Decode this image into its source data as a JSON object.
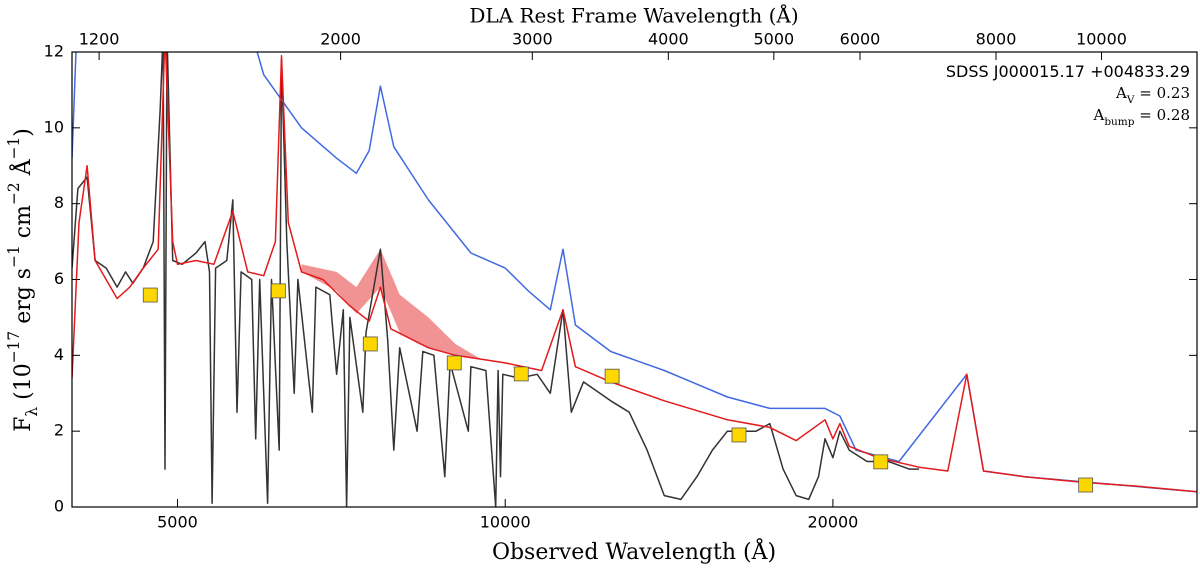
{
  "chart_data": {
    "type": "line",
    "x_scale": "log",
    "title": "DLA Rest Frame Wavelength  (Å)",
    "xlabel": "Observed Wavelength  (Å)",
    "ylabel": [
      {
        "text": "F"
      },
      {
        "text": "λ",
        "sub": true
      },
      {
        "text": "  (10"
      },
      {
        "text": "−17",
        "sup": true
      },
      {
        "text": " erg s"
      },
      {
        "text": "−1",
        "sup": true
      },
      {
        "text": " cm"
      },
      {
        "text": "−2",
        "sup": true
      },
      {
        "text": " Å"
      },
      {
        "text": "−1",
        "sup": true
      },
      {
        "text": ")"
      }
    ],
    "annotations": [
      [
        {
          "text": "SDSS J000015.17 +004833.29"
        }
      ],
      [
        {
          "text": "A"
        },
        {
          "text": "V",
          "sub": true
        },
        {
          "text": " = 0.23"
        }
      ],
      [
        {
          "text": "A"
        },
        {
          "text": "bump",
          "sub": true
        },
        {
          "text": " = 0.28"
        }
      ]
    ],
    "xlim": [
      4000,
      43200
    ],
    "xticks": [
      5000,
      10000,
      20000
    ],
    "x2lim": [
      1133.1,
      12238
    ],
    "x2ticks": [
      1200,
      2000,
      3000,
      4000,
      5000,
      6000,
      8000,
      10000
    ],
    "ylim": [
      0,
      12
    ],
    "yticks": [
      0,
      2,
      4,
      6,
      8,
      10,
      12
    ],
    "series": [
      {
        "kind": "band",
        "color": "#f08080",
        "x": [
          6500,
          7000,
          7300,
          7680,
          8000,
          8500,
          9000,
          9500
        ],
        "lower": [
          6.2,
          5.7,
          5.1,
          5.8,
          4.6,
          4.2,
          4.0,
          3.9
        ],
        "upper": [
          6.4,
          6.2,
          5.8,
          6.8,
          5.6,
          5.0,
          4.3,
          3.9
        ]
      },
      {
        "kind": "line",
        "color": "#333333",
        "x": [
          4000,
          4050,
          4130,
          4200,
          4300,
          4400,
          4480,
          4550,
          4650,
          4750,
          4820,
          4850,
          4870,
          4890,
          4950,
          5050,
          5200,
          5300,
          5350,
          5380,
          5420,
          5550,
          5620,
          5670,
          5720,
          5850,
          5900,
          5950,
          6050,
          6100,
          6200,
          6230,
          6300,
          6400,
          6450,
          6650,
          6700,
          6900,
          7000,
          7100,
          7150,
          7200,
          7400,
          7450,
          7680,
          7800,
          7900,
          8000,
          8300,
          8400,
          8600,
          8800,
          8900,
          9250,
          9300,
          9600,
          9800,
          9850,
          9900,
          9950,
          10300,
          10700,
          11000,
          11300,
          11500,
          11800,
          12500,
          13000,
          13500,
          14000,
          14500,
          15000,
          15500,
          16000,
          17000,
          17500,
          18000,
          18500,
          19000,
          19400,
          19670,
          20000,
          20300,
          20700,
          21500,
          22500,
          23500,
          24000
        ],
        "values": [
          6.3,
          8.4,
          8.7,
          6.5,
          6.3,
          5.8,
          6.2,
          5.9,
          6.3,
          7.0,
          10.5,
          12.5,
          1.0,
          12.5,
          6.5,
          6.4,
          6.7,
          7.0,
          6.2,
          0.1,
          6.3,
          6.5,
          8.1,
          2.5,
          6.2,
          6.0,
          1.8,
          6.0,
          0.1,
          6.0,
          1.5,
          11.8,
          7.0,
          3.0,
          6.0,
          2.5,
          5.8,
          5.6,
          3.5,
          5.2,
          0.0,
          5.0,
          2.5,
          4.6,
          6.8,
          4.4,
          1.5,
          4.2,
          2.0,
          4.1,
          4.0,
          0.8,
          3.8,
          2.0,
          3.7,
          3.6,
          0.0,
          3.6,
          0.8,
          3.5,
          3.4,
          3.5,
          3.0,
          5.2,
          2.5,
          3.3,
          2.8,
          2.5,
          1.5,
          0.3,
          0.2,
          0.8,
          1.5,
          2.0,
          2.0,
          2.2,
          1.0,
          0.3,
          0.2,
          0.8,
          1.8,
          1.3,
          2.0,
          1.5,
          1.2,
          1.2,
          1.0,
          1.0
        ]
      },
      {
        "kind": "line",
        "color": "#4169e1",
        "x": [
          4000,
          4040,
          4500,
          5850,
          6000,
          6500,
          7000,
          7300,
          7500,
          7680,
          7900,
          8500,
          9300,
          10000,
          10500,
          11000,
          11300,
          11600,
          12500,
          14000,
          16000,
          17500,
          19670,
          20300,
          21000,
          23000,
          26550,
          27500,
          30000,
          43200
        ],
        "values": [
          9.2,
          12.5,
          null,
          12.5,
          11.4,
          10.0,
          9.2,
          8.8,
          9.4,
          11.1,
          9.5,
          8.1,
          6.7,
          6.3,
          5.7,
          5.2,
          6.8,
          4.8,
          4.1,
          3.6,
          2.9,
          2.6,
          2.6,
          2.4,
          1.5,
          1.2,
          3.5,
          0.95,
          0.8,
          0.4
        ]
      },
      {
        "kind": "line",
        "color": "#e41a1c",
        "x": [
          4000,
          4060,
          4130,
          4200,
          4400,
          4520,
          4650,
          4800,
          4870,
          4950,
          5000,
          5200,
          5400,
          5620,
          5800,
          6000,
          6150,
          6230,
          6320,
          6500,
          6800,
          7200,
          7500,
          7680,
          7850,
          8500,
          9000,
          10000,
          10800,
          11300,
          11600,
          12500,
          14000,
          16000,
          17500,
          18500,
          19670,
          20000,
          20300,
          20700,
          22000,
          24000,
          25500,
          26550,
          27500,
          30000,
          34000,
          38000,
          43200
        ],
        "values": [
          3.4,
          7.5,
          9.0,
          6.5,
          5.5,
          5.8,
          6.3,
          6.8,
          12.5,
          7.0,
          6.4,
          6.5,
          6.4,
          7.8,
          6.2,
          6.1,
          7.0,
          11.9,
          7.5,
          6.2,
          6.0,
          5.3,
          4.9,
          5.8,
          4.7,
          4.2,
          4.0,
          3.8,
          3.6,
          5.2,
          3.7,
          3.3,
          2.8,
          2.3,
          2.1,
          1.75,
          2.3,
          1.8,
          2.2,
          1.6,
          1.3,
          1.05,
          0.95,
          3.5,
          0.95,
          0.8,
          0.65,
          0.55,
          0.4
        ]
      },
      {
        "kind": "marker",
        "color": "#ffd700",
        "x": [
          4720,
          6189,
          7517,
          8978,
          10345,
          12537,
          16397,
          22131,
          34136
        ],
        "values": [
          5.59,
          5.7,
          4.3,
          3.8,
          3.51,
          3.45,
          1.9,
          1.19,
          0.58
        ]
      }
    ]
  }
}
